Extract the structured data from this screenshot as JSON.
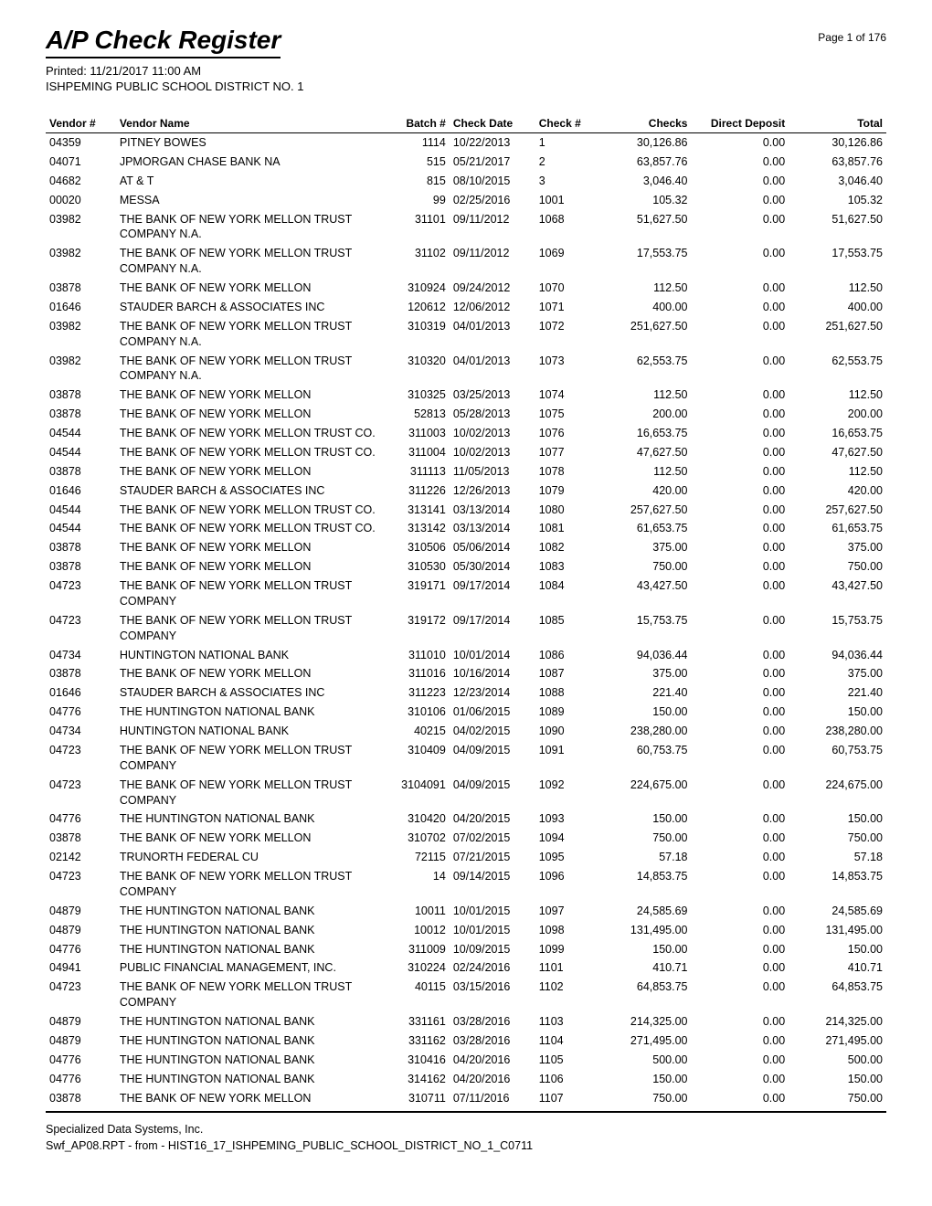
{
  "header": {
    "title": "A/P Check Register",
    "page": "Page 1 of 176",
    "printed": "Printed: 11/21/2017  11:00 AM",
    "org": "ISHPEMING PUBLIC SCHOOL DISTRICT NO. 1"
  },
  "columns": [
    "Vendor #",
    "Vendor Name",
    "Batch #",
    "Check Date",
    "Check #",
    "Checks",
    "Direct Deposit",
    "Total"
  ],
  "rows": [
    {
      "vendor": "04359",
      "name": "PITNEY BOWES",
      "batch": "1114",
      "date": "10/22/2013",
      "check": "1",
      "checks": "30,126.86",
      "deposit": "0.00",
      "total": "30,126.86"
    },
    {
      "vendor": "04071",
      "name": "JPMORGAN CHASE BANK NA",
      "batch": "515",
      "date": "05/21/2017",
      "check": "2",
      "checks": "63,857.76",
      "deposit": "0.00",
      "total": "63,857.76"
    },
    {
      "vendor": "04682",
      "name": "AT & T",
      "batch": "815",
      "date": "08/10/2015",
      "check": "3",
      "checks": "3,046.40",
      "deposit": "0.00",
      "total": "3,046.40"
    },
    {
      "vendor": "00020",
      "name": "MESSA",
      "batch": "99",
      "date": "02/25/2016",
      "check": "1001",
      "checks": "105.32",
      "deposit": "0.00",
      "total": "105.32"
    },
    {
      "vendor": "03982",
      "name": "THE BANK OF NEW YORK MELLON TRUST COMPANY N.A.",
      "batch": "31101",
      "date": "09/11/2012",
      "check": "1068",
      "checks": "51,627.50",
      "deposit": "0.00",
      "total": "51,627.50"
    },
    {
      "vendor": "03982",
      "name": "THE BANK OF NEW YORK MELLON TRUST COMPANY N.A.",
      "batch": "31102",
      "date": "09/11/2012",
      "check": "1069",
      "checks": "17,553.75",
      "deposit": "0.00",
      "total": "17,553.75"
    },
    {
      "vendor": "03878",
      "name": "THE BANK OF NEW YORK MELLON",
      "batch": "310924",
      "date": "09/24/2012",
      "check": "1070",
      "checks": "112.50",
      "deposit": "0.00",
      "total": "112.50"
    },
    {
      "vendor": "01646",
      "name": "STAUDER BARCH & ASSOCIATES INC",
      "batch": "120612",
      "date": "12/06/2012",
      "check": "1071",
      "checks": "400.00",
      "deposit": "0.00",
      "total": "400.00"
    },
    {
      "vendor": "03982",
      "name": "THE BANK OF NEW YORK MELLON TRUST COMPANY N.A.",
      "batch": "310319",
      "date": "04/01/2013",
      "check": "1072",
      "checks": "251,627.50",
      "deposit": "0.00",
      "total": "251,627.50"
    },
    {
      "vendor": "03982",
      "name": "THE BANK OF NEW YORK MELLON TRUST COMPANY N.A.",
      "batch": "310320",
      "date": "04/01/2013",
      "check": "1073",
      "checks": "62,553.75",
      "deposit": "0.00",
      "total": "62,553.75"
    },
    {
      "vendor": "03878",
      "name": "THE BANK OF NEW YORK MELLON",
      "batch": "310325",
      "date": "03/25/2013",
      "check": "1074",
      "checks": "112.50",
      "deposit": "0.00",
      "total": "112.50"
    },
    {
      "vendor": "03878",
      "name": "THE BANK OF NEW YORK MELLON",
      "batch": "52813",
      "date": "05/28/2013",
      "check": "1075",
      "checks": "200.00",
      "deposit": "0.00",
      "total": "200.00"
    },
    {
      "vendor": "04544",
      "name": "THE BANK OF NEW YORK MELLON TRUST CO.",
      "batch": "311003",
      "date": "10/02/2013",
      "check": "1076",
      "checks": "16,653.75",
      "deposit": "0.00",
      "total": "16,653.75"
    },
    {
      "vendor": "04544",
      "name": "THE BANK OF NEW YORK MELLON TRUST CO.",
      "batch": "311004",
      "date": "10/02/2013",
      "check": "1077",
      "checks": "47,627.50",
      "deposit": "0.00",
      "total": "47,627.50"
    },
    {
      "vendor": "03878",
      "name": "THE BANK OF NEW YORK MELLON",
      "batch": "311113",
      "date": "11/05/2013",
      "check": "1078",
      "checks": "112.50",
      "deposit": "0.00",
      "total": "112.50"
    },
    {
      "vendor": "01646",
      "name": "STAUDER BARCH & ASSOCIATES INC",
      "batch": "311226",
      "date": "12/26/2013",
      "check": "1079",
      "checks": "420.00",
      "deposit": "0.00",
      "total": "420.00"
    },
    {
      "vendor": "04544",
      "name": "THE BANK OF NEW YORK MELLON TRUST CO.",
      "batch": "313141",
      "date": "03/13/2014",
      "check": "1080",
      "checks": "257,627.50",
      "deposit": "0.00",
      "total": "257,627.50"
    },
    {
      "vendor": "04544",
      "name": "THE BANK OF NEW YORK MELLON TRUST CO.",
      "batch": "313142",
      "date": "03/13/2014",
      "check": "1081",
      "checks": "61,653.75",
      "deposit": "0.00",
      "total": "61,653.75"
    },
    {
      "vendor": "03878",
      "name": "THE BANK OF NEW YORK MELLON",
      "batch": "310506",
      "date": "05/06/2014",
      "check": "1082",
      "checks": "375.00",
      "deposit": "0.00",
      "total": "375.00"
    },
    {
      "vendor": "03878",
      "name": "THE BANK OF NEW YORK MELLON",
      "batch": "310530",
      "date": "05/30/2014",
      "check": "1083",
      "checks": "750.00",
      "deposit": "0.00",
      "total": "750.00"
    },
    {
      "vendor": "04723",
      "name": "THE BANK OF NEW YORK MELLON TRUST COMPANY",
      "batch": "319171",
      "date": "09/17/2014",
      "check": "1084",
      "checks": "43,427.50",
      "deposit": "0.00",
      "total": "43,427.50"
    },
    {
      "vendor": "04723",
      "name": "THE BANK OF NEW YORK MELLON TRUST COMPANY",
      "batch": "319172",
      "date": "09/17/2014",
      "check": "1085",
      "checks": "15,753.75",
      "deposit": "0.00",
      "total": "15,753.75"
    },
    {
      "vendor": "04734",
      "name": "HUNTINGTON NATIONAL BANK",
      "batch": "311010",
      "date": "10/01/2014",
      "check": "1086",
      "checks": "94,036.44",
      "deposit": "0.00",
      "total": "94,036.44"
    },
    {
      "vendor": "03878",
      "name": "THE BANK OF NEW YORK MELLON",
      "batch": "311016",
      "date": "10/16/2014",
      "check": "1087",
      "checks": "375.00",
      "deposit": "0.00",
      "total": "375.00"
    },
    {
      "vendor": "01646",
      "name": "STAUDER BARCH & ASSOCIATES INC",
      "batch": "311223",
      "date": "12/23/2014",
      "check": "1088",
      "checks": "221.40",
      "deposit": "0.00",
      "total": "221.40"
    },
    {
      "vendor": "04776",
      "name": "THE HUNTINGTON NATIONAL BANK",
      "batch": "310106",
      "date": "01/06/2015",
      "check": "1089",
      "checks": "150.00",
      "deposit": "0.00",
      "total": "150.00"
    },
    {
      "vendor": "04734",
      "name": "HUNTINGTON NATIONAL BANK",
      "batch": "40215",
      "date": "04/02/2015",
      "check": "1090",
      "checks": "238,280.00",
      "deposit": "0.00",
      "total": "238,280.00"
    },
    {
      "vendor": "04723",
      "name": "THE BANK OF NEW YORK MELLON TRUST COMPANY",
      "batch": "310409",
      "date": "04/09/2015",
      "check": "1091",
      "checks": "60,753.75",
      "deposit": "0.00",
      "total": "60,753.75"
    },
    {
      "vendor": "04723",
      "name": "THE BANK OF NEW YORK MELLON TRUST COMPANY",
      "batch": "3104091",
      "date": "04/09/2015",
      "check": "1092",
      "checks": "224,675.00",
      "deposit": "0.00",
      "total": "224,675.00"
    },
    {
      "vendor": "04776",
      "name": "THE HUNTINGTON NATIONAL BANK",
      "batch": "310420",
      "date": "04/20/2015",
      "check": "1093",
      "checks": "150.00",
      "deposit": "0.00",
      "total": "150.00"
    },
    {
      "vendor": "03878",
      "name": "THE BANK OF NEW YORK MELLON",
      "batch": "310702",
      "date": "07/02/2015",
      "check": "1094",
      "checks": "750.00",
      "deposit": "0.00",
      "total": "750.00"
    },
    {
      "vendor": "02142",
      "name": "TRUNORTH FEDERAL CU",
      "batch": "72115",
      "date": "07/21/2015",
      "check": "1095",
      "checks": "57.18",
      "deposit": "0.00",
      "total": "57.18"
    },
    {
      "vendor": "04723",
      "name": "THE BANK OF NEW YORK MELLON TRUST COMPANY",
      "batch": "14",
      "date": "09/14/2015",
      "check": "1096",
      "checks": "14,853.75",
      "deposit": "0.00",
      "total": "14,853.75"
    },
    {
      "vendor": "04879",
      "name": "THE HUNTINGTON NATIONAL BANK",
      "batch": "10011",
      "date": "10/01/2015",
      "check": "1097",
      "checks": "24,585.69",
      "deposit": "0.00",
      "total": "24,585.69"
    },
    {
      "vendor": "04879",
      "name": "THE HUNTINGTON NATIONAL BANK",
      "batch": "10012",
      "date": "10/01/2015",
      "check": "1098",
      "checks": "131,495.00",
      "deposit": "0.00",
      "total": "131,495.00"
    },
    {
      "vendor": "04776",
      "name": "THE HUNTINGTON NATIONAL BANK",
      "batch": "311009",
      "date": "10/09/2015",
      "check": "1099",
      "checks": "150.00",
      "deposit": "0.00",
      "total": "150.00"
    },
    {
      "vendor": "04941",
      "name": "PUBLIC FINANCIAL MANAGEMENT, INC.",
      "batch": "310224",
      "date": "02/24/2016",
      "check": "1101",
      "checks": "410.71",
      "deposit": "0.00",
      "total": "410.71"
    },
    {
      "vendor": "04723",
      "name": "THE BANK OF NEW YORK MELLON TRUST COMPANY",
      "batch": "40115",
      "date": "03/15/2016",
      "check": "1102",
      "checks": "64,853.75",
      "deposit": "0.00",
      "total": "64,853.75"
    },
    {
      "vendor": "04879",
      "name": "THE HUNTINGTON NATIONAL BANK",
      "batch": "331161",
      "date": "03/28/2016",
      "check": "1103",
      "checks": "214,325.00",
      "deposit": "0.00",
      "total": "214,325.00"
    },
    {
      "vendor": "04879",
      "name": "THE HUNTINGTON NATIONAL BANK",
      "batch": "331162",
      "date": "03/28/2016",
      "check": "1104",
      "checks": "271,495.00",
      "deposit": "0.00",
      "total": "271,495.00"
    },
    {
      "vendor": "04776",
      "name": "THE HUNTINGTON NATIONAL BANK",
      "batch": "310416",
      "date": "04/20/2016",
      "check": "1105",
      "checks": "500.00",
      "deposit": "0.00",
      "total": "500.00"
    },
    {
      "vendor": "04776",
      "name": "THE HUNTINGTON NATIONAL BANK",
      "batch": "314162",
      "date": "04/20/2016",
      "check": "1106",
      "checks": "150.00",
      "deposit": "0.00",
      "total": "150.00"
    },
    {
      "vendor": "03878",
      "name": "THE BANK OF NEW YORK MELLON",
      "batch": "310711",
      "date": "07/11/2016",
      "check": "1107",
      "checks": "750.00",
      "deposit": "0.00",
      "total": "750.00"
    }
  ],
  "footer": {
    "line1": "Specialized Data Systems, Inc.",
    "line2": "Swf_AP08.RPT - from - HIST16_17_ISHPEMING_PUBLIC_SCHOOL_DISTRICT_NO_1_C0711"
  }
}
